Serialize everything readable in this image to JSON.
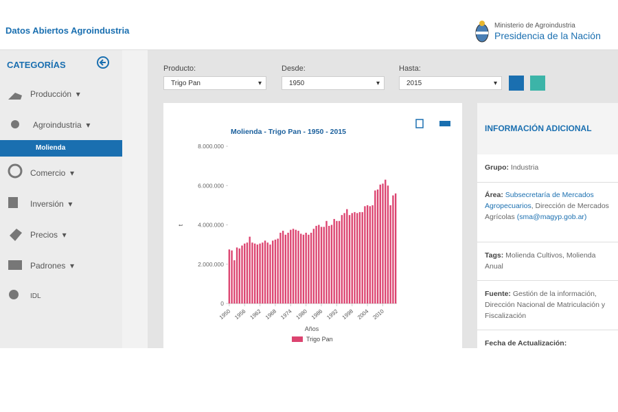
{
  "header": {
    "site_title": "Datos Abiertos Agroindustria",
    "ministry": "Ministerio de Agroindustria",
    "presidency": "Presidencia de la Nación"
  },
  "sidebar": {
    "title": "CATEGORÍAS",
    "items": [
      "Producción",
      "Agroindustria",
      "Molienda",
      "Comercio",
      "Inversión",
      "Precios",
      "Padrones",
      "IDL"
    ]
  },
  "filters": [
    {
      "label": "Producto:",
      "value": "Trigo Pan"
    },
    {
      "label": "Desde:",
      "value": "1950"
    },
    {
      "label": "Hasta:",
      "value": "2015"
    }
  ],
  "info": {
    "title": "INFORMACIÓN ADICIONAL",
    "group_label": "Grupo:",
    "group": "Industria",
    "area_label": "Área:",
    "area_link": "Subsecretaría de Mercados Agropecuarios",
    "area_text": ", Dirección de Mercados Agrícolas",
    "area_email": "(sma@magyp.gob.ar)",
    "tags_label": "Tags:",
    "tags": "Molienda Cultivos, Molienda Anual",
    "source_label": "Fuente:",
    "source": "Gestión de la información, Dirección Nacional de Matriculación y Fiscalización",
    "updated_label": "Fecha de Actualización:"
  },
  "chart_data": {
    "type": "bar",
    "title": "Molienda - Trigo Pan - 1950 - 2015",
    "x_label": "Años",
    "y_label": "t",
    "x": [
      1950,
      1951,
      1952,
      1953,
      1954,
      1955,
      1956,
      1957,
      1958,
      1959,
      1960,
      1961,
      1962,
      1963,
      1964,
      1965,
      1966,
      1967,
      1968,
      1969,
      1970,
      1971,
      1972,
      1973,
      1974,
      1975,
      1976,
      1977,
      1978,
      1979,
      1980,
      1981,
      1982,
      1983,
      1984,
      1985,
      1986,
      1987,
      1988,
      1989,
      1990,
      1991,
      1992,
      1993,
      1994,
      1995,
      1996,
      1997,
      1998,
      1999,
      2000,
      2001,
      2002,
      2003,
      2004,
      2005,
      2006,
      2007,
      2008,
      2009,
      2010,
      2011,
      2012,
      2013,
      2014,
      2015
    ],
    "series": [
      {
        "name": "Trigo Pan",
        "color": "#dc4470",
        "values": [
          2750000,
          2700000,
          2200000,
          2850000,
          2800000,
          2950000,
          3050000,
          3100000,
          3400000,
          3100000,
          3050000,
          3000000,
          3050000,
          3100000,
          3200000,
          3100000,
          3000000,
          3200000,
          3250000,
          3300000,
          3600000,
          3700000,
          3500000,
          3600000,
          3750000,
          3800000,
          3750000,
          3700000,
          3550000,
          3500000,
          3600000,
          3500000,
          3600000,
          3800000,
          3950000,
          4000000,
          3900000,
          3900000,
          4200000,
          3950000,
          4000000,
          4300000,
          4200000,
          4200000,
          4500000,
          4600000,
          4800000,
          4500000,
          4600000,
          4650000,
          4600000,
          4650000,
          4650000,
          4950000,
          5000000,
          4950000,
          5000000,
          5750000,
          5800000,
          6050000,
          6100000,
          6300000,
          6000000,
          5000000,
          5500000,
          5600000
        ]
      }
    ],
    "xlim": [
      1949.5,
      2015.5
    ],
    "xticks": [
      1950,
      1956,
      1962,
      1968,
      1974,
      1980,
      1986,
      1992,
      1998,
      2004,
      2010
    ],
    "ylim": [
      0,
      8000000
    ],
    "yticks": [
      0,
      {
        "value": 2000000,
        "label": "2.000.000"
      },
      {
        "value": 4000000,
        "label": "4.000.000"
      },
      {
        "value": 6000000,
        "label": "6.000.000"
      },
      {
        "value": 8000000,
        "label": "8.000.000"
      }
    ]
  }
}
